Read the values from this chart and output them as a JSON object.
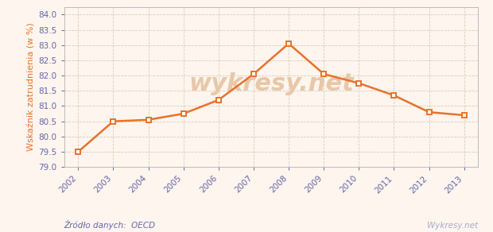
{
  "years": [
    2002,
    2003,
    2004,
    2005,
    2006,
    2007,
    2008,
    2009,
    2010,
    2011,
    2012,
    2013
  ],
  "values": [
    79.5,
    80.5,
    80.55,
    80.75,
    81.2,
    82.05,
    83.05,
    82.05,
    81.75,
    81.35,
    80.8,
    80.7
  ],
  "line_color": "#e8722a",
  "marker_color": "#e8722a",
  "marker_face": "#ffffff",
  "bg_color": "#fdf5ee",
  "grid_color": "#ddccbb",
  "ylabel": "Wskaźnik zatrudnienia (w %)",
  "ylabel_color": "#e8722a",
  "source_text": "Źródło danych:  OECD",
  "watermark_text": "wykresy.net",
  "watermark_color": "#e8c8a8",
  "source_color": "#6666aa",
  "watermark_right_text": "Wykresy.net",
  "watermark_right_color": "#aaaacc",
  "ylim_min": 79.0,
  "ylim_max": 84.25,
  "border_color": "#bbbbbb",
  "axis_label_color": "#6666aa",
  "tick_fontsize": 7.5,
  "ylabel_fontsize": 8.0
}
